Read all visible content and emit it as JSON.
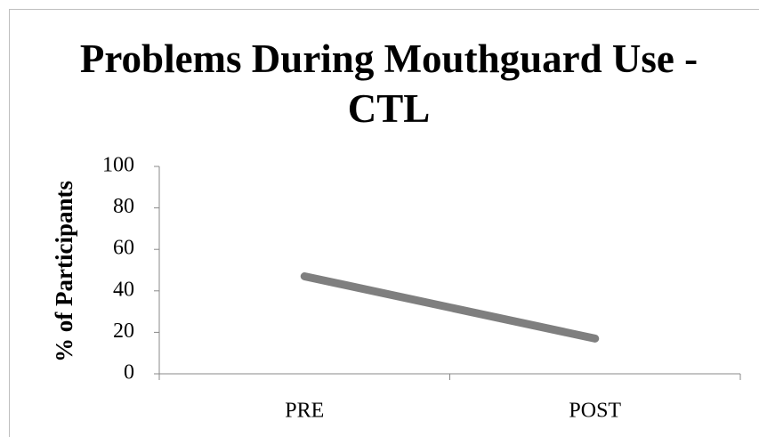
{
  "chart_data": {
    "type": "line",
    "title": "Problems During Mouthguard Use - CTL",
    "y_label": "% of Participants",
    "categories": [
      "PRE",
      "POST"
    ],
    "values": [
      47,
      17
    ],
    "color": "#7f7f7f",
    "ylim": [
      0,
      100
    ],
    "yticks": [
      0,
      20,
      40,
      60,
      80,
      100
    ],
    "grid": false
  }
}
